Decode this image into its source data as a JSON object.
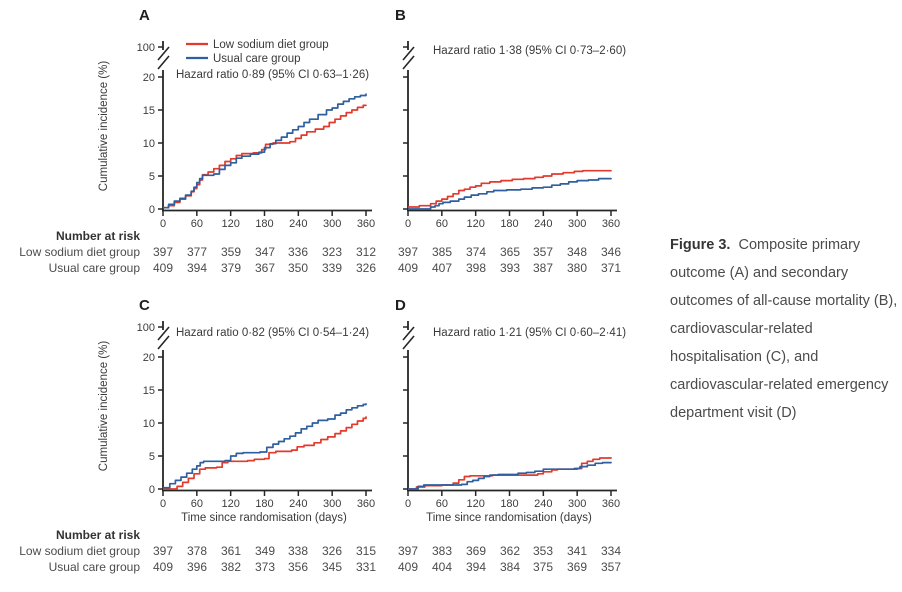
{
  "colors": {
    "low_sodium": "#e23a2c",
    "usual_care": "#2f5f9f",
    "axis": "#262626",
    "text": "#3a3a3a",
    "tick_text": "#3d3d3d",
    "table_text": "#4c4c4c",
    "caption_text": "#4b4b4b"
  },
  "axis": {
    "ylabel": "Cumulative incidence (%)",
    "xlabel": "Time since randomisation (days)",
    "x_ticks": [
      0,
      60,
      120,
      180,
      240,
      300,
      360
    ],
    "y_ticks": [
      0,
      5,
      10,
      15,
      20
    ],
    "y_break_label": "100"
  },
  "legend": {
    "items": [
      {
        "name": "Low sodium diet group",
        "color_key": "low_sodium"
      },
      {
        "name": "Usual care group",
        "color_key": "usual_care"
      }
    ]
  },
  "risk": {
    "header": "Number at risk",
    "row_labels": [
      "Low sodium diet group",
      "Usual care group"
    ]
  },
  "caption": {
    "label": "Figure 3.",
    "lines": [
      "Composite primary",
      "outcome (A) and secondary",
      "outcomes of all-cause mortality (B),",
      "cardiovascular-related",
      "hospitalisation (C), and",
      "cardiovascular-related emergency",
      "department visit (D)"
    ]
  },
  "chart_data": [
    {
      "id": "A",
      "label": "A",
      "type": "line",
      "hazard_ratio": "Hazard ratio 0·89 (95% CI 0·63–1·26)",
      "xlim": [
        0,
        360
      ],
      "ylim": [
        0,
        20
      ],
      "y_break_to": 100,
      "series": [
        {
          "name": "Low sodium diet group",
          "color_key": "low_sodium",
          "x": [
            0,
            10,
            20,
            30,
            40,
            50,
            55,
            60,
            65,
            70,
            80,
            90,
            100,
            110,
            120,
            130,
            140,
            160,
            175,
            182,
            195,
            225,
            235,
            245,
            255,
            270,
            285,
            295,
            305,
            315,
            325,
            335,
            345,
            355,
            360
          ],
          "y": [
            0.2,
            0.5,
            1.0,
            1.5,
            2.0,
            2.6,
            3.1,
            3.7,
            4.4,
            5.2,
            5.6,
            6.1,
            6.6,
            7.2,
            7.6,
            8.1,
            8.4,
            8.5,
            9.0,
            9.8,
            10.0,
            10.2,
            10.7,
            11.2,
            11.7,
            12.1,
            12.5,
            13.1,
            13.6,
            14.1,
            14.6,
            15.0,
            15.4,
            15.7,
            15.8
          ]
        },
        {
          "name": "Usual care group",
          "color_key": "usual_care",
          "x": [
            0,
            10,
            20,
            30,
            40,
            50,
            55,
            60,
            65,
            70,
            90,
            100,
            110,
            120,
            130,
            140,
            155,
            170,
            180,
            190,
            200,
            210,
            220,
            230,
            240,
            250,
            260,
            275,
            290,
            300,
            310,
            320,
            330,
            340,
            350,
            360
          ],
          "y": [
            0.2,
            0.7,
            1.2,
            1.6,
            2.1,
            2.7,
            3.3,
            4.0,
            4.6,
            5.1,
            5.3,
            6.0,
            6.6,
            7.0,
            7.7,
            8.0,
            8.3,
            8.6,
            9.3,
            9.9,
            10.4,
            10.9,
            11.5,
            12.0,
            12.5,
            13.1,
            13.6,
            14.3,
            15.0,
            15.3,
            15.9,
            16.3,
            16.7,
            17.0,
            17.2,
            17.5
          ]
        }
      ],
      "number_at_risk": [
        [
          397,
          377,
          359,
          347,
          336,
          323,
          312
        ],
        [
          409,
          394,
          379,
          367,
          350,
          339,
          326
        ]
      ]
    },
    {
      "id": "B",
      "label": "B",
      "type": "line",
      "hazard_ratio": "Hazard ratio 1·38 (95% CI 0·73–2·60)",
      "xlim": [
        0,
        360
      ],
      "ylim": [
        0,
        20
      ],
      "y_break_to": 100,
      "series": [
        {
          "name": "Low sodium diet group",
          "color_key": "low_sodium",
          "x": [
            0,
            20,
            40,
            50,
            60,
            70,
            80,
            90,
            100,
            110,
            120,
            130,
            145,
            165,
            185,
            205,
            225,
            240,
            255,
            275,
            295,
            310,
            360
          ],
          "y": [
            0.3,
            0.5,
            0.8,
            1.2,
            1.5,
            1.9,
            2.3,
            2.8,
            3.0,
            3.3,
            3.5,
            3.9,
            4.1,
            4.3,
            4.5,
            4.6,
            4.8,
            5.0,
            5.3,
            5.5,
            5.7,
            5.8,
            5.9
          ]
        },
        {
          "name": "Usual care group",
          "color_key": "usual_care",
          "x": [
            0,
            40,
            48,
            55,
            62,
            75,
            90,
            100,
            112,
            125,
            140,
            152,
            175,
            200,
            220,
            240,
            255,
            270,
            285,
            300,
            320,
            338,
            360
          ],
          "y": [
            0.0,
            0.3,
            0.5,
            0.8,
            1.0,
            1.2,
            1.5,
            1.8,
            2.1,
            2.3,
            2.6,
            2.8,
            2.9,
            3.0,
            3.2,
            3.3,
            3.6,
            3.8,
            4.1,
            4.3,
            4.4,
            4.6,
            4.7
          ]
        }
      ],
      "number_at_risk": [
        [
          397,
          385,
          374,
          365,
          357,
          348,
          346
        ],
        [
          409,
          407,
          398,
          393,
          387,
          380,
          371
        ]
      ]
    },
    {
      "id": "C",
      "label": "C",
      "type": "line",
      "hazard_ratio": "Hazard ratio 0·82 (95% CI 0·54–1·24)",
      "xlim": [
        0,
        360
      ],
      "ylim": [
        0,
        20
      ],
      "y_break_to": 100,
      "series": [
        {
          "name": "Low sodium diet group",
          "color_key": "low_sodium",
          "x": [
            0,
            25,
            35,
            45,
            55,
            65,
            75,
            95,
            105,
            115,
            150,
            162,
            180,
            188,
            200,
            228,
            238,
            250,
            268,
            280,
            292,
            305,
            315,
            325,
            335,
            345,
            355,
            360
          ],
          "y": [
            0.0,
            0.4,
            1.0,
            1.6,
            2.3,
            3.0,
            3.2,
            3.3,
            4.0,
            4.2,
            4.3,
            4.5,
            4.6,
            5.5,
            5.7,
            5.9,
            6.4,
            6.6,
            7.0,
            7.5,
            7.9,
            8.4,
            8.8,
            9.3,
            9.8,
            10.3,
            10.7,
            11.0
          ]
        },
        {
          "name": "Usual care group",
          "color_key": "usual_care",
          "x": [
            0,
            12,
            22,
            32,
            42,
            52,
            60,
            66,
            72,
            110,
            120,
            130,
            142,
            172,
            184,
            195,
            205,
            215,
            225,
            235,
            245,
            255,
            265,
            275,
            292,
            305,
            315,
            325,
            335,
            345,
            355,
            360
          ],
          "y": [
            0.2,
            0.8,
            1.3,
            1.8,
            2.4,
            3.0,
            3.5,
            4.0,
            4.2,
            4.3,
            5.0,
            5.4,
            5.5,
            5.6,
            6.3,
            6.8,
            7.2,
            7.6,
            8.0,
            8.5,
            9.1,
            9.5,
            10.0,
            10.4,
            10.6,
            11.2,
            11.5,
            12.0,
            12.3,
            12.6,
            12.8,
            13.0
          ]
        }
      ],
      "number_at_risk": [
        [
          397,
          378,
          361,
          349,
          338,
          326,
          315
        ],
        [
          409,
          396,
          382,
          373,
          356,
          345,
          331
        ]
      ]
    },
    {
      "id": "D",
      "label": "D",
      "type": "line",
      "hazard_ratio": "Hazard ratio 1·21 (95% CI 0·60–2·41)",
      "xlim": [
        0,
        360
      ],
      "ylim": [
        0,
        20
      ],
      "y_break_to": 100,
      "series": [
        {
          "name": "Low sodium diet group",
          "color_key": "low_sodium",
          "x": [
            0,
            15,
            30,
            60,
            80,
            90,
            100,
            110,
            150,
            230,
            240,
            255,
            265,
            300,
            308,
            318,
            328,
            340,
            360
          ],
          "y": [
            0.0,
            0.3,
            0.5,
            0.6,
            0.9,
            1.4,
            1.9,
            2.0,
            2.1,
            2.3,
            2.6,
            2.9,
            3.0,
            3.1,
            3.9,
            4.2,
            4.5,
            4.7,
            4.8
          ]
        },
        {
          "name": "Usual care group",
          "color_key": "usual_care",
          "x": [
            0,
            18,
            28,
            95,
            105,
            115,
            125,
            135,
            145,
            160,
            195,
            210,
            225,
            240,
            295,
            305,
            318,
            332,
            345,
            360
          ],
          "y": [
            0.0,
            0.4,
            0.6,
            0.7,
            1.1,
            1.3,
            1.6,
            1.9,
            2.1,
            2.2,
            2.4,
            2.5,
            2.7,
            3.0,
            3.1,
            3.4,
            3.6,
            3.9,
            4.0,
            4.1
          ]
        }
      ],
      "number_at_risk": [
        [
          397,
          383,
          369,
          362,
          353,
          341,
          334
        ],
        [
          409,
          404,
          394,
          384,
          375,
          369,
          357
        ]
      ]
    }
  ]
}
